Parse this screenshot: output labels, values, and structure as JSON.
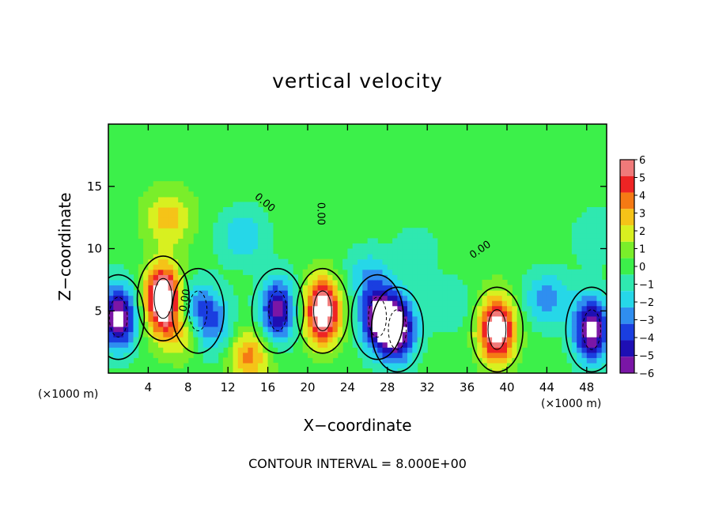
{
  "chart_data": {
    "type": "heatmap",
    "title": "vertical velocity",
    "xlabel": "X−coordinate",
    "ylabel": "Z−coordinate",
    "x_unit_left": "(×1000 m)",
    "x_unit_right": "(×1000 m)",
    "xlim": [
      0,
      50
    ],
    "ylim": [
      0,
      20
    ],
    "x_ticks": [
      4,
      8,
      12,
      16,
      20,
      24,
      28,
      32,
      36,
      40,
      44,
      48
    ],
    "y_ticks": [
      5,
      10,
      15
    ],
    "colorbar_ticks": [
      "6",
      "5",
      "4",
      "3",
      "2",
      "1",
      "0",
      "−1",
      "−2",
      "−3",
      "−4",
      "−5",
      "−6"
    ],
    "colorbar_range": [
      -6,
      6
    ],
    "contour_labels": [
      "0.00",
      "0.00",
      "0.00",
      "0.00"
    ],
    "footer": "CONTOUR INTERVAL = 8.000E+00",
    "blobs": [
      {
        "x": 5.5,
        "z": 6.0,
        "value": 9
      },
      {
        "x": 6.0,
        "z": 12.5,
        "value": 3
      },
      {
        "x": 1.0,
        "z": 4.5,
        "value": -7
      },
      {
        "x": 9.0,
        "z": 5.0,
        "value": -5
      },
      {
        "x": 10.5,
        "z": 3.0,
        "value": -3
      },
      {
        "x": 8.0,
        "z": 3.5,
        "value": 4
      },
      {
        "x": 14.0,
        "z": 1.5,
        "value": 4
      },
      {
        "x": 17.0,
        "z": 5.0,
        "value": -6
      },
      {
        "x": 13.5,
        "z": 11.0,
        "value": -2.5
      },
      {
        "x": 21.5,
        "z": 5.0,
        "value": 8
      },
      {
        "x": 27.0,
        "z": 4.5,
        "value": -6.5
      },
      {
        "x": 29.0,
        "z": 3.5,
        "value": -7
      },
      {
        "x": 26.0,
        "z": 8.0,
        "value": -2
      },
      {
        "x": 34.0,
        "z": 5.5,
        "value": -1.5
      },
      {
        "x": 39.0,
        "z": 3.5,
        "value": 8
      },
      {
        "x": 44.0,
        "z": 6.0,
        "value": -3
      },
      {
        "x": 48.5,
        "z": 3.5,
        "value": -7
      },
      {
        "x": 49.0,
        "z": 11.0,
        "value": -1.5
      },
      {
        "x": 31.0,
        "z": 10.0,
        "value": -1
      }
    ]
  }
}
